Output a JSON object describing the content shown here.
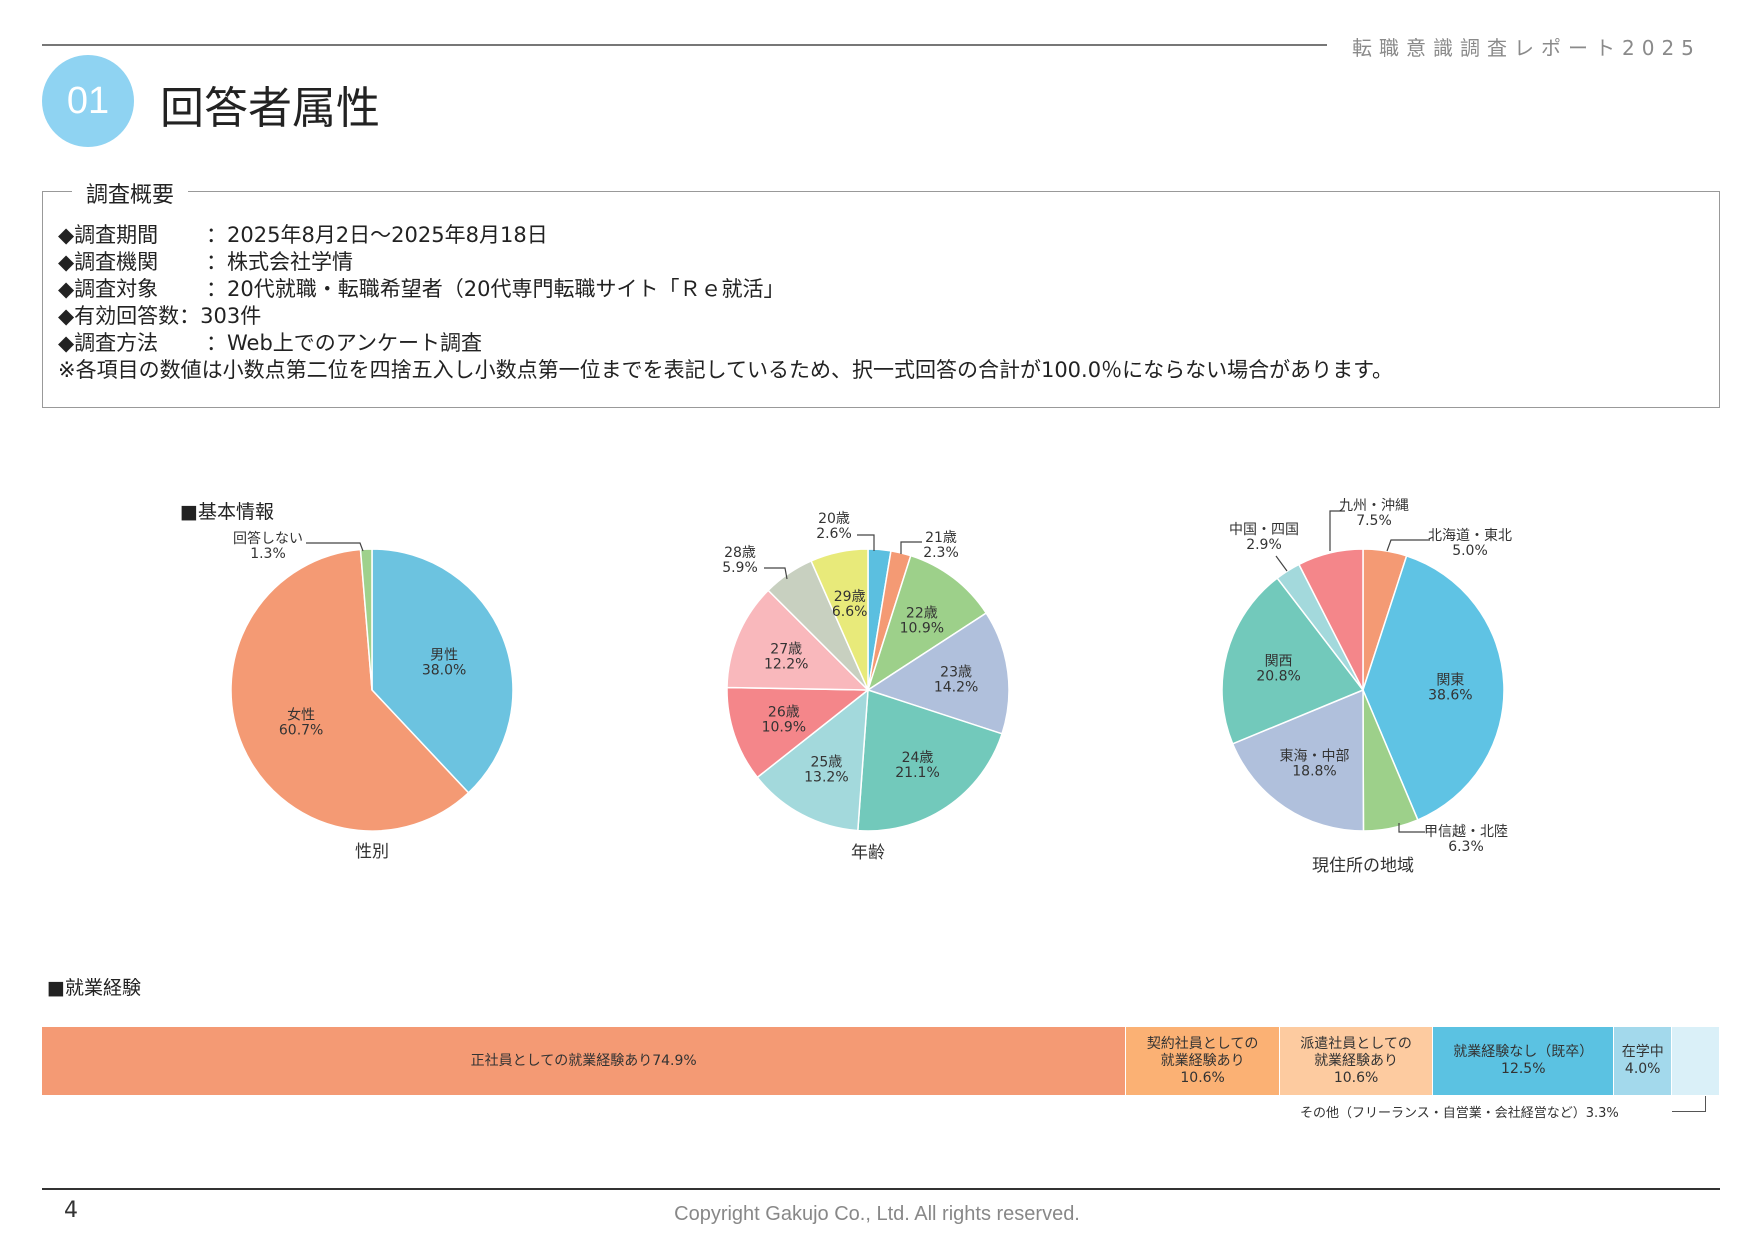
{
  "header": {
    "report_title": "転職意識調査レポート2025"
  },
  "section": {
    "number": "01",
    "title": "回答者属性"
  },
  "survey": {
    "legend": "調査概要",
    "rows": [
      {
        "label": "◆調査期間",
        "value": "：2025年8月2日～2025年8月18日"
      },
      {
        "label": "◆調査機関",
        "value": "：株式会社学情"
      },
      {
        "label": "◆調査対象",
        "value": "：20代就職・転職希望者（20代専門転職サイト「Ｒｅ就活」"
      },
      {
        "label": "◆有効回答数",
        "value": "：303件"
      },
      {
        "label": "◆調査方法",
        "value": "：Web上でのアンケート調査"
      }
    ],
    "note": "※各項目の数値は小数点第二位を四捨五入し小数点第一位までを表記しているため、択一式回答の合計が100.0％にならない場合があります。"
  },
  "basic_info_heading": "■基本情報",
  "work_heading": "■就業経験",
  "chart_data": [
    {
      "type": "pie",
      "title": "性別",
      "slices": [
        {
          "label": "男性",
          "value": 38.0,
          "color": "#6cc3e0"
        },
        {
          "label": "女性",
          "value": 60.7,
          "color": "#f49a74"
        },
        {
          "label": "回答しない",
          "value": 1.3,
          "color": "#9fd18c",
          "external": true
        }
      ]
    },
    {
      "type": "pie",
      "title": "年齢",
      "slices": [
        {
          "label": "20歳",
          "value": 2.6,
          "color": "#5bbfe0",
          "external": true
        },
        {
          "label": "21歳",
          "value": 2.3,
          "color": "#f49a74",
          "external": true
        },
        {
          "label": "22歳",
          "value": 10.9,
          "color": "#9dd08a"
        },
        {
          "label": "23歳",
          "value": 14.2,
          "color": "#b0c0dc"
        },
        {
          "label": "24歳",
          "value": 21.1,
          "color": "#72c9bb"
        },
        {
          "label": "25歳",
          "value": 13.2,
          "color": "#a3d9dc"
        },
        {
          "label": "26歳",
          "value": 10.9,
          "color": "#f4868a"
        },
        {
          "label": "27歳",
          "value": 12.2,
          "color": "#f9b8bc"
        },
        {
          "label": "28歳",
          "value": 5.9,
          "color": "#c8d0c0",
          "external": true
        },
        {
          "label": "29歳",
          "value": 6.6,
          "color": "#e8ea7a"
        }
      ]
    },
    {
      "type": "pie",
      "title": "現住所の地域",
      "slices": [
        {
          "label": "北海道・東北",
          "value": 5.0,
          "color": "#f49a74",
          "external": true
        },
        {
          "label": "関東",
          "value": 38.6,
          "color": "#5fc3e4"
        },
        {
          "label": "甲信越・北陸",
          "value": 6.3,
          "color": "#9dd08a",
          "external": true
        },
        {
          "label": "東海・中部",
          "value": 18.8,
          "color": "#b0c0dc"
        },
        {
          "label": "関西",
          "value": 20.8,
          "color": "#72c9bb"
        },
        {
          "label": "中国・四国",
          "value": 2.9,
          "color": "#a3d9dc",
          "external": true
        },
        {
          "label": "九州・沖縄",
          "value": 7.5,
          "color": "#f4868a",
          "external": true
        }
      ]
    },
    {
      "type": "bar",
      "title": "就業経験",
      "stacked": true,
      "unit": "%",
      "segments": [
        {
          "lines": [
            "正社員としての就業経験あり74.9%"
          ],
          "value": 74.9,
          "color": "#f49a74"
        },
        {
          "lines": [
            "契約社員としての",
            "就業経験あり",
            "10.6%"
          ],
          "value": 10.6,
          "color": "#fbb174"
        },
        {
          "lines": [
            "派遣社員としての",
            "就業経験あり",
            "10.6%"
          ],
          "value": 10.6,
          "color": "#fdcba0"
        },
        {
          "lines": [
            "就業経験なし（既卒）",
            "12.5%"
          ],
          "value": 12.5,
          "color": "#5bc2e2"
        },
        {
          "lines": [
            "在学中",
            "4.0%"
          ],
          "value": 4.0,
          "color": "#a3d9ec"
        },
        {
          "lines": [],
          "value": 3.3,
          "color": "#daf0f8",
          "external_label": "その他（フリーランス・自営業・会社経営など）3.3%"
        }
      ]
    }
  ],
  "footer": {
    "page": "4",
    "copyright": "Copyright Gakujo Co., Ltd. All rights reserved."
  }
}
